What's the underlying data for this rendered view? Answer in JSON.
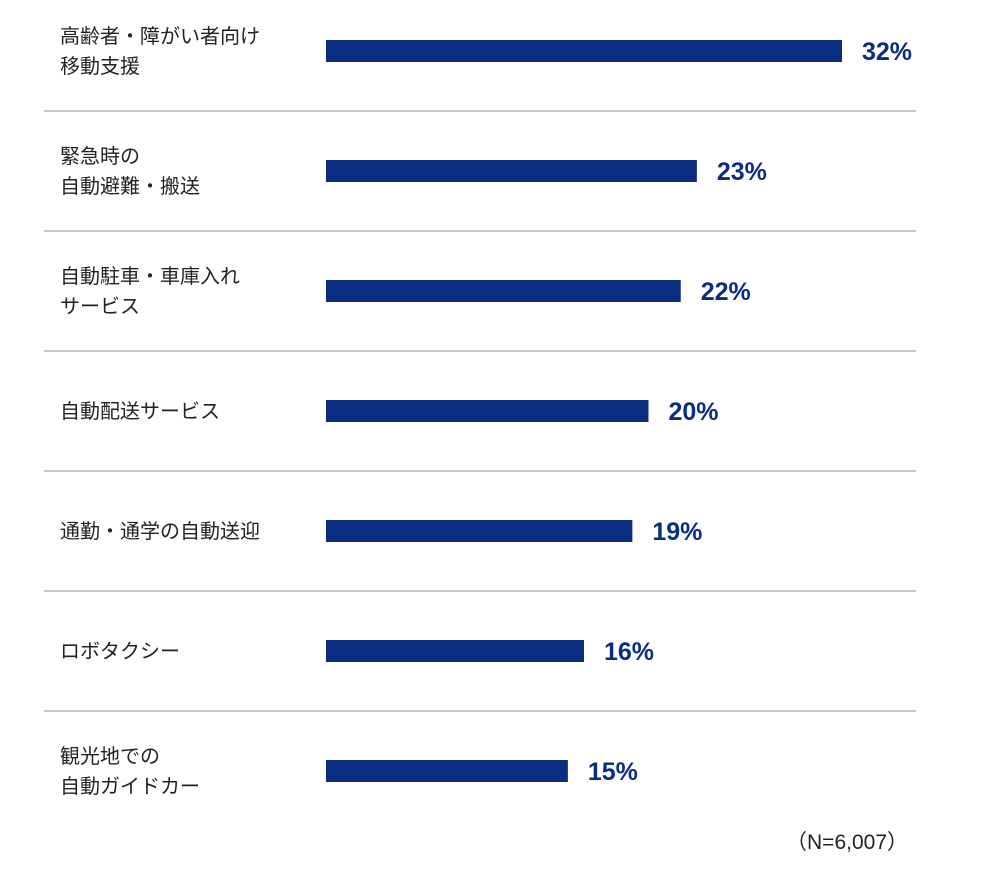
{
  "chart_data": {
    "type": "bar",
    "orientation": "horizontal",
    "categories": [
      [
        "高齢者・障がい者向け",
        "移動支援"
      ],
      [
        "緊急時の",
        "自動避難・搬送"
      ],
      [
        "自動駐車・車庫入れ",
        "サービス"
      ],
      [
        "自動配送サービス"
      ],
      [
        "通勤・通学の自動送迎"
      ],
      [
        "ロボタクシー"
      ],
      [
        "観光地での",
        "自動ガイドカー"
      ]
    ],
    "values": [
      32,
      23,
      22,
      20,
      19,
      16,
      15
    ],
    "value_labels": [
      "32%",
      "23%",
      "22%",
      "20%",
      "19%",
      "16%",
      "15%"
    ],
    "unit": "%",
    "bar_color": "#0a2d82",
    "label_color": "#0a2d82",
    "divider_color": "#c8c8c8",
    "grid": false,
    "legend": "none"
  },
  "note": "（N=6,007）"
}
